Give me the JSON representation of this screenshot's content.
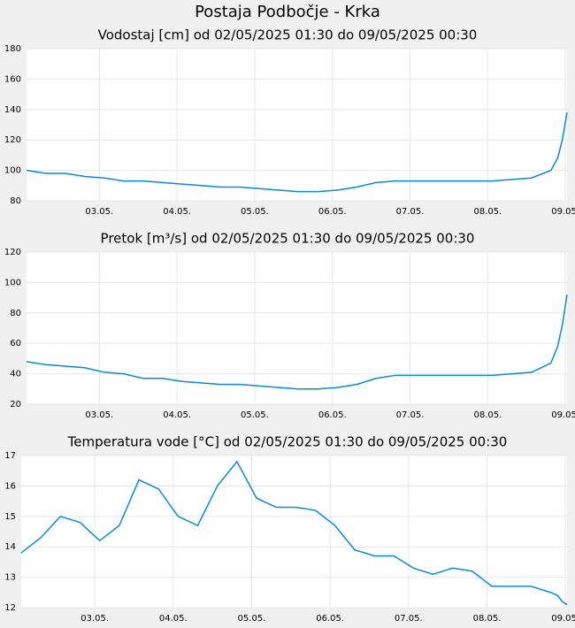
{
  "title": "Postaja Podbočje - Krka",
  "chart_data": [
    {
      "type": "line",
      "title": "Vodostaj [cm] od 02/05/2025 01:30 do 09/05/2025 00:30",
      "color": "#0a8ad8",
      "grid": true,
      "x": [
        2.0625,
        2.3125,
        2.5625,
        2.8125,
        3.0625,
        3.3125,
        3.5625,
        3.8125,
        4.0625,
        4.3125,
        4.5625,
        4.8125,
        5.0625,
        5.3125,
        5.5625,
        5.8125,
        6.0625,
        6.3125,
        6.5625,
        6.8125,
        7.0625,
        7.3125,
        7.5625,
        7.8125,
        8.0625,
        8.3125,
        8.5625,
        8.8125,
        8.9,
        8.96,
        9.0208
      ],
      "values": [
        100,
        98,
        98,
        96,
        95,
        93,
        93,
        92,
        91,
        90,
        89,
        89,
        88,
        87,
        86,
        86,
        87,
        89,
        92,
        93,
        93,
        93,
        93,
        93,
        93,
        94,
        95,
        100,
        108,
        120,
        138
      ],
      "xlim": [
        2.0625,
        9.0208
      ],
      "xticks": [
        {
          "value": 3,
          "label": "03.05."
        },
        {
          "value": 4,
          "label": "04.05."
        },
        {
          "value": 5,
          "label": "05.05."
        },
        {
          "value": 6,
          "label": "06.05."
        },
        {
          "value": 7,
          "label": "07.05."
        },
        {
          "value": 8,
          "label": "08.05."
        },
        {
          "value": 9,
          "label": "09.05."
        }
      ],
      "ylim": [
        80,
        180
      ],
      "yticks": [
        80,
        100,
        120,
        140,
        160,
        180
      ]
    },
    {
      "type": "line",
      "title": "Pretok [m³/s] od 02/05/2025 01:30 do 09/05/2025 00:30",
      "color": "#0a8ad8",
      "grid": true,
      "x": [
        2.0625,
        2.3125,
        2.5625,
        2.8125,
        3.0625,
        3.3125,
        3.5625,
        3.8125,
        4.0625,
        4.3125,
        4.5625,
        4.8125,
        5.0625,
        5.3125,
        5.5625,
        5.8125,
        6.0625,
        6.3125,
        6.5625,
        6.8125,
        7.0625,
        7.3125,
        7.5625,
        7.8125,
        8.0625,
        8.3125,
        8.5625,
        8.8125,
        8.9,
        8.96,
        9.0208
      ],
      "values": [
        48,
        46,
        45,
        44,
        41,
        40,
        37,
        37,
        35,
        34,
        33,
        33,
        32,
        31,
        30,
        30,
        31,
        33,
        37,
        39,
        39,
        39,
        39,
        39,
        39,
        40,
        41,
        47,
        58,
        72,
        92
      ],
      "xlim": [
        2.0625,
        9.0208
      ],
      "xticks": [
        {
          "value": 3,
          "label": "03.05."
        },
        {
          "value": 4,
          "label": "04.05."
        },
        {
          "value": 5,
          "label": "05.05."
        },
        {
          "value": 6,
          "label": "06.05."
        },
        {
          "value": 7,
          "label": "07.05."
        },
        {
          "value": 8,
          "label": "08.05."
        },
        {
          "value": 9,
          "label": "09.05."
        }
      ],
      "ylim": [
        20,
        120
      ],
      "yticks": [
        20,
        40,
        60,
        80,
        100,
        120
      ]
    },
    {
      "type": "line",
      "title": "Temperatura vode [°C] od 02/05/2025 01:30 do 09/05/2025 00:30",
      "color": "#0a8ad8",
      "grid": true,
      "x": [
        2.0625,
        2.3125,
        2.5625,
        2.8125,
        3.0625,
        3.3125,
        3.5625,
        3.8125,
        4.0625,
        4.3125,
        4.5625,
        4.8125,
        5.0625,
        5.3125,
        5.5625,
        5.8125,
        6.0625,
        6.3125,
        6.5625,
        6.8125,
        7.0625,
        7.3125,
        7.5625,
        7.8125,
        8.0625,
        8.3125,
        8.5625,
        8.8125,
        8.9,
        8.96,
        9.0208
      ],
      "values": [
        13.8,
        14.3,
        15.0,
        14.8,
        14.2,
        14.7,
        16.2,
        15.9,
        15.0,
        14.7,
        16.0,
        16.8,
        15.6,
        15.3,
        15.3,
        15.2,
        14.7,
        13.9,
        13.7,
        13.7,
        13.3,
        13.1,
        13.3,
        13.2,
        12.7,
        12.7,
        12.7,
        12.5,
        12.4,
        12.2,
        12.1
      ],
      "xlim": [
        2.0625,
        9.0208
      ],
      "xticks": [
        {
          "value": 3,
          "label": "03.05."
        },
        {
          "value": 4,
          "label": "04.05."
        },
        {
          "value": 5,
          "label": "05.05."
        },
        {
          "value": 6,
          "label": "06.05."
        },
        {
          "value": 7,
          "label": "07.05."
        },
        {
          "value": 8,
          "label": "08.05."
        },
        {
          "value": 9,
          "label": "09.05."
        }
      ],
      "ylim": [
        12,
        17
      ],
      "yticks": [
        12,
        13,
        14,
        15,
        16,
        17
      ]
    }
  ]
}
